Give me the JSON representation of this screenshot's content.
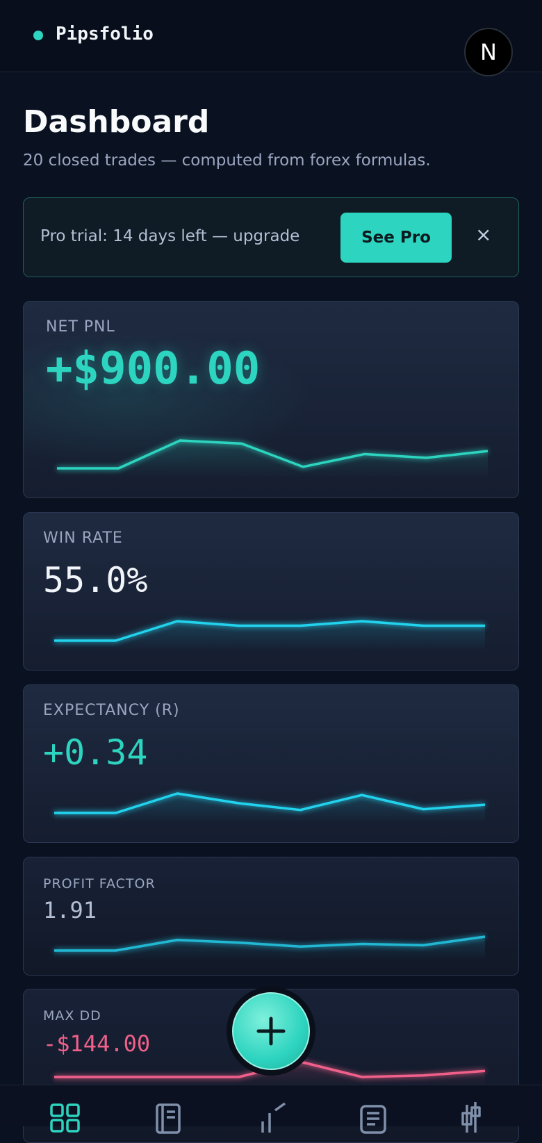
{
  "header": {
    "brand": "Pipsfolio",
    "avatar": "N"
  },
  "page": {
    "title": "Dashboard",
    "subtitle": "20 closed trades — computed from forex formulas."
  },
  "banner": {
    "text": "Pro trial: 14 days left — upgrade",
    "button": "See Pro",
    "close": "×"
  },
  "cards": [
    {
      "label": "NET PNL",
      "value": "+$900.00",
      "color": "#2dd4bf",
      "line_color": "#2dd4bf",
      "trend": [
        0,
        0,
        37,
        33,
        2,
        19,
        14,
        23
      ]
    },
    {
      "label": "WIN RATE",
      "value": "55.0%",
      "color": "#f1f5f9",
      "line_color": "#22d3ee",
      "trend": [
        0,
        0,
        26,
        20,
        20,
        26,
        20,
        20
      ]
    },
    {
      "label": "EXPECTANCY (R)",
      "value": "+0.34",
      "color": "#2dd4bf",
      "line_color": "#22d3ee",
      "trend": [
        0,
        0,
        26,
        13,
        4,
        24,
        5,
        11
      ]
    },
    {
      "label": "PROFIT FACTOR",
      "value": "1.91",
      "color": "#b4c0d6",
      "line_color": "#22b8d4",
      "trend": [
        0,
        0,
        16,
        12,
        6,
        10,
        8,
        21
      ]
    },
    {
      "label": "MAX DD",
      "value": "-$144.00",
      "color": "#f0608a",
      "line_color": "#f0608a",
      "trend": [
        0,
        0,
        0,
        0,
        20,
        0,
        2,
        8
      ]
    }
  ]
}
